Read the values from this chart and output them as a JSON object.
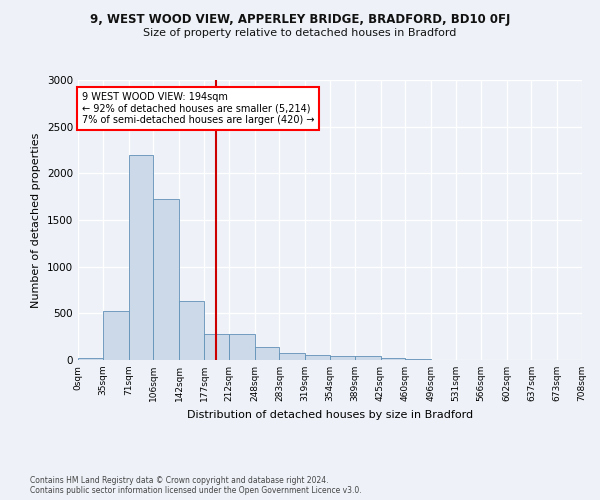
{
  "title_line1": "9, WEST WOOD VIEW, APPERLEY BRIDGE, BRADFORD, BD10 0FJ",
  "title_line2": "Size of property relative to detached houses in Bradford",
  "xlabel": "Distribution of detached houses by size in Bradford",
  "ylabel": "Number of detached properties",
  "bar_color": "#ccd9e8",
  "bar_edge_color": "#6090b8",
  "vline_x": 194,
  "vline_color": "#cc0000",
  "annotation_text": "9 WEST WOOD VIEW: 194sqm\n← 92% of detached houses are smaller (5,214)\n7% of semi-detached houses are larger (420) →",
  "bins": [
    0,
    35,
    71,
    106,
    142,
    177,
    212,
    248,
    283,
    319,
    354,
    389,
    425,
    460,
    496,
    531,
    566,
    602,
    637,
    673,
    708
  ],
  "bar_heights": [
    25,
    520,
    2200,
    1725,
    630,
    280,
    280,
    140,
    80,
    50,
    40,
    40,
    25,
    15,
    5,
    5,
    5,
    2,
    2,
    2
  ],
  "ylim": [
    0,
    3000
  ],
  "yticks": [
    0,
    500,
    1000,
    1500,
    2000,
    2500,
    3000
  ],
  "footer_text": "Contains HM Land Registry data © Crown copyright and database right 2024.\nContains public sector information licensed under the Open Government Licence v3.0.",
  "background_color": "#eef2f8"
}
